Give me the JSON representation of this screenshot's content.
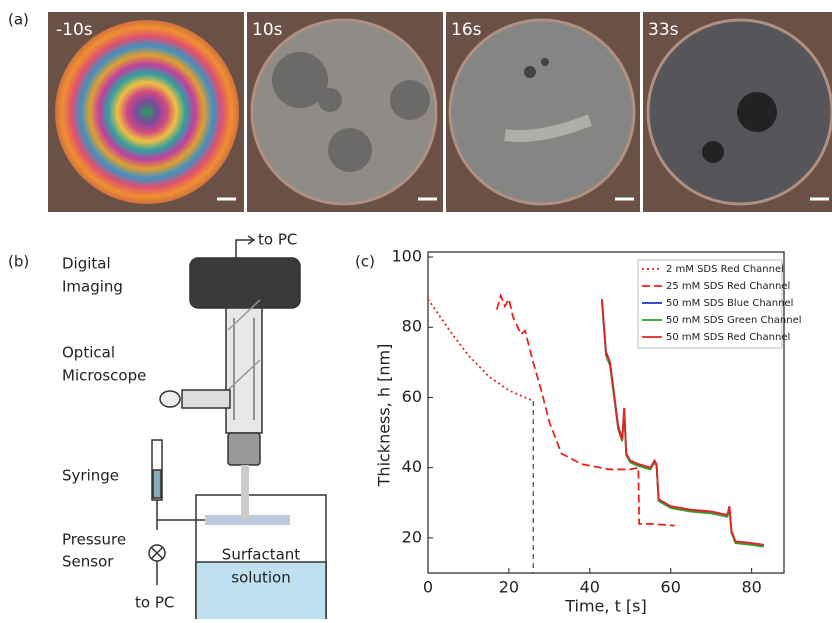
{
  "panel_a": {
    "label": "(a)",
    "frames": [
      "-10s",
      "10s",
      "16s",
      "33s"
    ]
  },
  "panel_b": {
    "label": "(b)",
    "to_pc_top": "to PC",
    "to_pc_bottom": "to PC",
    "digital_imaging": [
      "Digital",
      "Imaging"
    ],
    "optical_microscope": [
      "Optical",
      "Microscope"
    ],
    "syringe": "Syringe",
    "pressure_sensor": [
      "Pressure",
      "Sensor"
    ],
    "surfactant": [
      "Surfactant",
      "solution"
    ]
  },
  "chart_data": {
    "type": "line",
    "label": "(c)",
    "x_label": "Time, t [s]",
    "y_label": "Thickness, h [nm]",
    "xlim": [
      0,
      88
    ],
    "ylim": [
      10,
      100
    ],
    "xticks": [
      0,
      20,
      40,
      60,
      80
    ],
    "yticks": [
      20,
      40,
      60,
      80,
      100
    ],
    "legend": "top-right",
    "marker_line_x": 26,
    "series": [
      {
        "name": "2 mM SDS Red Channel",
        "color": "#e8231f",
        "dash": "2,3",
        "x": [
          0,
          3,
          6,
          10,
          15,
          20,
          26
        ],
        "values": [
          88,
          83,
          78,
          72,
          66,
          62,
          59
        ]
      },
      {
        "name": "25 mM SDS Red Channel",
        "color": "#e8231f",
        "dash": "8,4",
        "x": [
          17,
          18,
          19,
          20,
          21,
          23,
          24,
          26,
          28,
          30,
          33,
          38,
          45,
          50,
          52,
          52.2,
          55,
          61
        ],
        "values": [
          85,
          89,
          86,
          88,
          83,
          78,
          79,
          70,
          62,
          53,
          44,
          41,
          39.5,
          39.5,
          40,
          24,
          24,
          23.5
        ]
      },
      {
        "name": "50 mM SDS Blue Channel",
        "color": "#2030d0",
        "dash": "",
        "x": [
          43,
          44,
          45,
          47,
          48,
          48.5,
          49,
          50,
          52,
          55,
          56,
          56.5,
          57,
          60,
          65,
          70,
          74,
          74.5,
          75,
          76,
          80,
          83
        ],
        "values": [
          88,
          73,
          70,
          52,
          48,
          57,
          44,
          42,
          41,
          40,
          42,
          41,
          31,
          29,
          28,
          27.5,
          26.5,
          29,
          22,
          19,
          18.5,
          18
        ]
      },
      {
        "name": "50 mM SDS Green Channel",
        "color": "#2a9d2a",
        "dash": "",
        "x": [
          43,
          44,
          45,
          47,
          48,
          48.5,
          49,
          50,
          52,
          55,
          56,
          56.5,
          57,
          60,
          65,
          70,
          74,
          74.5,
          75,
          76,
          80,
          83
        ],
        "values": [
          87,
          72,
          69,
          51,
          47.5,
          56,
          43.5,
          41.5,
          40.5,
          39.5,
          41.5,
          40.5,
          30.5,
          28.5,
          27.5,
          27,
          26,
          28.5,
          21.5,
          18.5,
          18,
          17.5
        ]
      },
      {
        "name": "50 mM SDS Red Channel",
        "color": "#e8231f",
        "dash": "",
        "x": [
          43,
          44,
          45,
          47,
          48,
          48.5,
          49,
          50,
          52,
          55,
          56,
          56.5,
          57,
          60,
          65,
          70,
          74,
          74.5,
          75,
          76,
          80,
          83
        ],
        "values": [
          88,
          72.5,
          70,
          51.5,
          48,
          57,
          44,
          42,
          41,
          40,
          42,
          41,
          31,
          29,
          28,
          27.5,
          26.5,
          29,
          22,
          19,
          18.5,
          18
        ]
      }
    ]
  }
}
